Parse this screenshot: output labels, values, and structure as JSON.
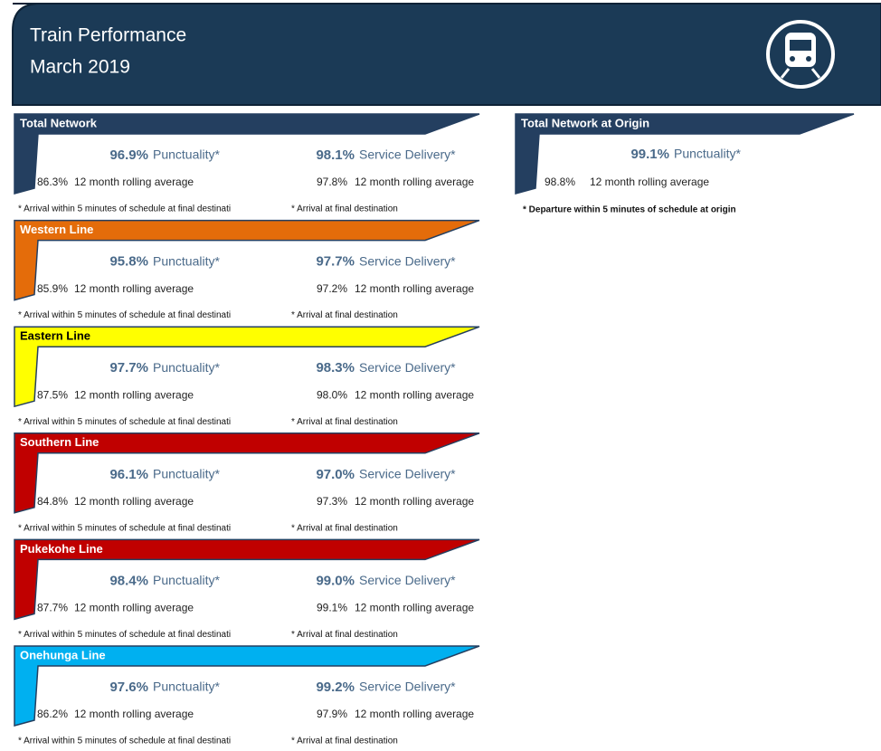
{
  "header": {
    "title": "Train Performance",
    "subtitle": "March 2019"
  },
  "sections": [
    {
      "name": "Total Network",
      "color": "#243f60",
      "text_color": "#ffffff",
      "punctuality": "96.9%",
      "punctuality_label": "Punctuality*",
      "punctuality_avg": "86.3%",
      "service_delivery": "98.1%",
      "service_delivery_label": "Service Delivery*",
      "service_delivery_avg": "97.8%",
      "avg_label": "12 month rolling average",
      "footnote_punctuality": "* Arrival within 5 minutes of schedule at final destinati",
      "footnote_service": "* Arrival at final destination"
    },
    {
      "name": "Western Line",
      "color": "#e46c0a",
      "text_color": "#ffffff",
      "punctuality": "95.8%",
      "punctuality_label": "Punctuality*",
      "punctuality_avg": "85.9%",
      "service_delivery": "97.7%",
      "service_delivery_label": "Service Delivery*",
      "service_delivery_avg": "97.2%",
      "avg_label": "12 month rolling average",
      "footnote_punctuality": "* Arrival within 5 minutes of schedule at final destinati",
      "footnote_service": "* Arrival at final destination"
    },
    {
      "name": "Eastern Line",
      "color": "#ffff00",
      "text_color": "#000000",
      "punctuality": "97.7%",
      "punctuality_label": "Punctuality*",
      "punctuality_avg": "87.5%",
      "service_delivery": "98.3%",
      "service_delivery_label": "Service Delivery*",
      "service_delivery_avg": "98.0%",
      "avg_label": "12 month rolling average",
      "footnote_punctuality": "* Arrival within 5 minutes of schedule at final destinati",
      "footnote_service": "* Arrival at final destination"
    },
    {
      "name": "Southern Line",
      "color": "#c00000",
      "text_color": "#ffffff",
      "punctuality": "96.1%",
      "punctuality_label": "Punctuality*",
      "punctuality_avg": "84.8%",
      "service_delivery": "97.0%",
      "service_delivery_label": "Service Delivery*",
      "service_delivery_avg": "97.3%",
      "avg_label": "12 month rolling average",
      "footnote_punctuality": "* Arrival within 5 minutes of schedule at final destinati",
      "footnote_service": "* Arrival at final destination"
    },
    {
      "name": "Pukekohe Line",
      "color": "#c00000",
      "text_color": "#ffffff",
      "punctuality": "98.4%",
      "punctuality_label": "Punctuality*",
      "punctuality_avg": "87.7%",
      "service_delivery": "99.0%",
      "service_delivery_label": "Service Delivery*",
      "service_delivery_avg": "99.1%",
      "avg_label": "12 month rolling average",
      "footnote_punctuality": "* Arrival within 5 minutes of schedule at final destinati",
      "footnote_service": "* Arrival at final destination"
    },
    {
      "name": "Onehunga Line",
      "color": "#00b0f0",
      "text_color": "#ffffff",
      "punctuality": "97.6%",
      "punctuality_label": "Punctuality*",
      "punctuality_avg": "86.2%",
      "service_delivery": "99.2%",
      "service_delivery_label": "Service Delivery*",
      "service_delivery_avg": "97.9%",
      "avg_label": "12 month rolling average",
      "footnote_punctuality": "* Arrival within 5 minutes of schedule at final destinati",
      "footnote_service": "* Arrival at final destination"
    }
  ],
  "origin": {
    "name": "Total Network at Origin",
    "color": "#243f60",
    "text_color": "#ffffff",
    "punctuality": "99.1%",
    "punctuality_label": "Punctuality*",
    "punctuality_avg": "98.8%",
    "avg_label": "12 month rolling average",
    "footnote": "* Departure within 5 minutes of schedule at origin"
  }
}
